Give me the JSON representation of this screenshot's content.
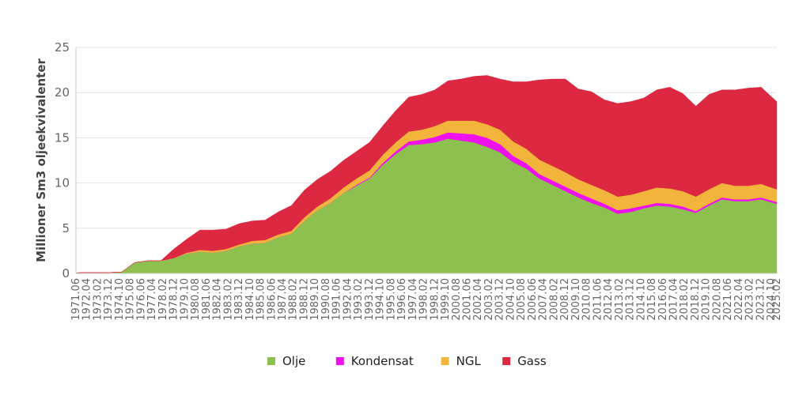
{
  "chart_data": {
    "type": "area",
    "stacked": true,
    "ylabel": "Millioner Sm3 oljeekvivalenter",
    "xlabel": "",
    "ylim": [
      0,
      25
    ],
    "yticks": [
      0,
      5,
      10,
      15,
      20,
      25
    ],
    "grid": true,
    "legend_position": "bottom",
    "x_tick_labels": [
      "1971.06",
      "1972.04",
      "1973.02",
      "1973.12",
      "1974.10",
      "1975.08",
      "1976.06",
      "1977.04",
      "1978.02",
      "1978.12",
      "1979.10",
      "1980.08",
      "1981.06",
      "1982.04",
      "1983.02",
      "1983.12",
      "1984.10",
      "1985.08",
      "1986.06",
      "1987.04",
      "1988.02",
      "1988.12",
      "1989.10",
      "1990.08",
      "1991.06",
      "1992.04",
      "1993.02",
      "1993.12",
      "1994.10",
      "1995.08",
      "1996.06",
      "1997.04",
      "1998.02",
      "1998.12",
      "1999.10",
      "2000.08",
      "2001.06",
      "2002.04",
      "2003.02",
      "2003.12",
      "2004.10",
      "2005.08",
      "2006.06",
      "2007.04",
      "2008.02",
      "2008.12",
      "2009.10",
      "2010.08",
      "2011.06",
      "2012.04",
      "2013.02",
      "2013.12",
      "2014.10",
      "2015.08",
      "2016.06",
      "2017.04",
      "2018.02",
      "2018.12",
      "2019.10",
      "2020.08",
      "2021.06",
      "2022.04",
      "2023.02",
      "2023.12",
      "2024.10",
      "2025.02"
    ],
    "x": [
      1971.5,
      1972,
      1973,
      1974,
      1975,
      1976,
      1977,
      1978,
      1979,
      1980,
      1981,
      1982,
      1983,
      1984,
      1985,
      1986,
      1987,
      1988,
      1989,
      1990,
      1991,
      1992,
      1993,
      1994,
      1995,
      1996,
      1997,
      1998,
      1999,
      2000,
      2001,
      2002,
      2003,
      2004,
      2005,
      2006,
      2007,
      2008,
      2009,
      2010,
      2011,
      2012,
      2013,
      2014,
      2015,
      2016,
      2017,
      2018,
      2019,
      2020,
      2021,
      2022,
      2023,
      2024,
      2025.2
    ],
    "x_range": [
      1971.5,
      2025.2
    ],
    "series": [
      {
        "name": "Olje",
        "color": "#8dc04f",
        "values": [
          0.05,
          0.1,
          0.1,
          0.1,
          0.15,
          1.2,
          1.4,
          1.4,
          1.7,
          2.2,
          2.4,
          2.3,
          2.5,
          3.0,
          3.3,
          3.4,
          4.0,
          4.4,
          5.8,
          7.0,
          7.8,
          8.9,
          9.7,
          10.5,
          12.0,
          13.2,
          14.2,
          14.3,
          14.5,
          14.9,
          14.7,
          14.5,
          14.0,
          13.4,
          12.3,
          11.6,
          10.5,
          9.8,
          9.1,
          8.4,
          7.8,
          7.3,
          6.6,
          6.8,
          7.2,
          7.5,
          7.4,
          7.1,
          6.7,
          7.5,
          8.2,
          8.0,
          8.0,
          8.2,
          7.7
        ]
      },
      {
        "name": "Kondensat",
        "color": "#ee11ee",
        "values": [
          0,
          0,
          0,
          0,
          0,
          0,
          0,
          0,
          0,
          0,
          0,
          0,
          0,
          0,
          0,
          0,
          0,
          0,
          0,
          0,
          0,
          0,
          0.1,
          0.1,
          0.2,
          0.3,
          0.4,
          0.5,
          0.6,
          0.7,
          0.8,
          0.9,
          1.0,
          0.9,
          0.7,
          0.6,
          0.5,
          0.5,
          0.5,
          0.5,
          0.5,
          0.4,
          0.4,
          0.4,
          0.3,
          0.3,
          0.3,
          0.3,
          0.2,
          0.2,
          0.2,
          0.2,
          0.2,
          0.2,
          0.2
        ]
      },
      {
        "name": "NGL",
        "color": "#f2b43b",
        "values": [
          0,
          0,
          0,
          0,
          0,
          0,
          0,
          0,
          0,
          0.1,
          0.2,
          0.2,
          0.2,
          0.2,
          0.3,
          0.3,
          0.3,
          0.3,
          0.4,
          0.4,
          0.5,
          0.6,
          0.7,
          0.8,
          0.9,
          1.0,
          1.1,
          1.1,
          1.2,
          1.3,
          1.4,
          1.5,
          1.5,
          1.6,
          1.6,
          1.6,
          1.6,
          1.6,
          1.6,
          1.5,
          1.5,
          1.5,
          1.5,
          1.5,
          1.6,
          1.7,
          1.7,
          1.7,
          1.6,
          1.6,
          1.6,
          1.5,
          1.5,
          1.5,
          1.4
        ]
      },
      {
        "name": "Gass",
        "color": "#dc2941",
        "values": [
          0,
          0,
          0,
          0,
          0,
          0,
          0,
          0,
          1.0,
          1.5,
          2.2,
          2.3,
          2.2,
          2.3,
          2.2,
          2.2,
          2.5,
          2.8,
          3.0,
          3.0,
          3.0,
          3.0,
          3.0,
          3.1,
          3.2,
          3.5,
          3.8,
          3.9,
          4.0,
          4.4,
          4.6,
          4.9,
          5.4,
          5.6,
          6.6,
          7.4,
          8.8,
          9.6,
          10.3,
          10.0,
          10.3,
          10.0,
          10.3,
          10.3,
          10.3,
          10.8,
          11.2,
          10.8,
          10.0,
          10.5,
          10.3,
          10.6,
          10.8,
          10.7,
          9.7
        ]
      }
    ]
  }
}
